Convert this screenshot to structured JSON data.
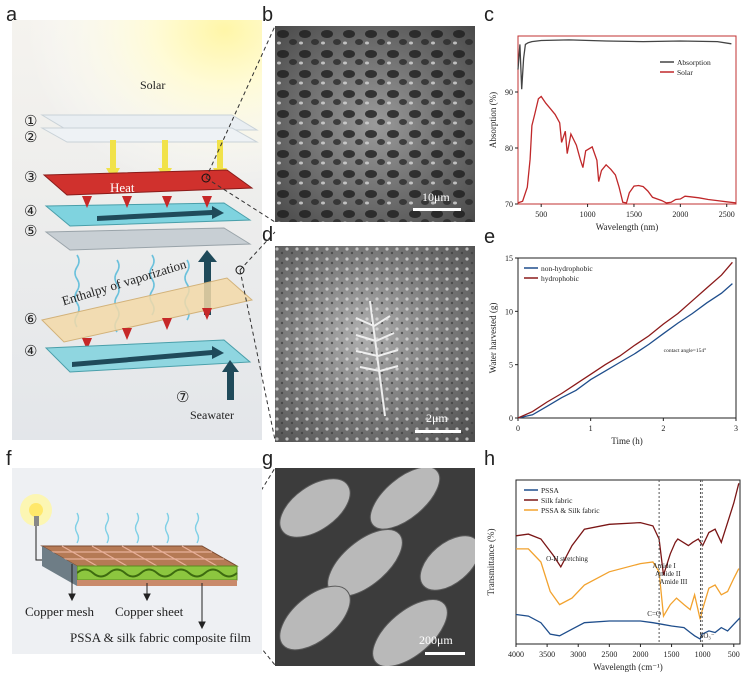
{
  "panels": {
    "a": {
      "letter": "a",
      "solar": "Solar",
      "heat": "Heat",
      "enthalpy": "Enthalpy of vaporization",
      "seawater": "Seawater",
      "markers": [
        "①",
        "②",
        "③",
        "④",
        "⑤",
        "⑥",
        "④",
        "⑦"
      ]
    },
    "b": {
      "letter": "b",
      "scale": "10μm"
    },
    "c": {
      "letter": "c"
    },
    "d": {
      "letter": "d",
      "scale": "2μm"
    },
    "e": {
      "letter": "e"
    },
    "f": {
      "letter": "f",
      "copper_mesh": "Copper mesh",
      "copper_sheet": "Copper sheet",
      "composite": "PSSA & silk fabric composite film"
    },
    "g": {
      "letter": "g",
      "scale": "200μm"
    },
    "h": {
      "letter": "h"
    }
  },
  "chart_data": [
    {
      "id": "c",
      "type": "line",
      "xlabel": "Wavelength (nm)",
      "ylabel": "Absorption (%)",
      "xlim": [
        250,
        2600
      ],
      "ylim": [
        70,
        100
      ],
      "xticks": [
        "500",
        "1000",
        "1500",
        "2000",
        "2500"
      ],
      "yticks": [
        "70",
        "80",
        "90"
      ],
      "legend_position": "top-right",
      "series": [
        {
          "name": "Absorption",
          "color": "#444444",
          "x": [
            250,
            270,
            290,
            310,
            330,
            360,
            400,
            500,
            800,
            1200,
            1600,
            2000,
            2400,
            2550
          ],
          "y": [
            94,
            98.5,
            90.5,
            96,
            98.5,
            98.8,
            99,
            99.2,
            99.3,
            99.1,
            99.0,
            99.1,
            99.0,
            98.6
          ]
        },
        {
          "name": "Solar",
          "color": "#c0282a",
          "x": [
            250,
            300,
            350,
            380,
            400,
            430,
            470,
            500,
            550,
            600,
            650,
            700,
            720,
            760,
            780,
            820,
            880,
            920,
            950,
            980,
            1050,
            1100,
            1120,
            1150,
            1200,
            1250,
            1300,
            1340,
            1380,
            1420,
            1450,
            1500,
            1550,
            1600,
            1650,
            1700,
            1800,
            1850,
            1900,
            1950,
            2000,
            2050,
            2100,
            2200,
            2300,
            2400,
            2500,
            2600
          ],
          "y": [
            70.2,
            70.5,
            73,
            78,
            84,
            86,
            88.8,
            89.2,
            88,
            87,
            86,
            84.5,
            81,
            83,
            79,
            82.5,
            80.5,
            78,
            76.5,
            79.5,
            80.2,
            77.8,
            74,
            76,
            77,
            76.2,
            75.2,
            73,
            70.3,
            70.2,
            72,
            73.2,
            73.3,
            73.1,
            72.3,
            71.2,
            70.6,
            70.2,
            70.3,
            70.8,
            70.9,
            71.4,
            71.3,
            71.1,
            70.8,
            70.6,
            70.4,
            70.2
          ]
        }
      ]
    },
    {
      "id": "e",
      "type": "line",
      "xlabel": "Time (h)",
      "ylabel": "Water harvested (g)",
      "xlim": [
        0,
        3
      ],
      "ylim": [
        0,
        15
      ],
      "xticks": [
        "0",
        "1",
        "2",
        "3"
      ],
      "yticks": [
        "0",
        "5",
        "10",
        "15"
      ],
      "legend_position": "top-left",
      "annotation": "contact angle=154°",
      "series": [
        {
          "name": "non-hydrophobic",
          "color": "#1f4e8c",
          "x": [
            0,
            0.2,
            0.4,
            0.6,
            0.8,
            1.0,
            1.2,
            1.4,
            1.6,
            1.8,
            2.0,
            2.2,
            2.4,
            2.6,
            2.8,
            2.95
          ],
          "y": [
            0,
            0.3,
            1.1,
            1.9,
            2.6,
            3.6,
            4.4,
            5.2,
            6.0,
            6.9,
            7.9,
            8.9,
            9.8,
            10.8,
            11.7,
            12.6
          ]
        },
        {
          "name": "hydrophobic",
          "color": "#8b1a1a",
          "x": [
            0,
            0.2,
            0.4,
            0.6,
            0.8,
            1.0,
            1.2,
            1.4,
            1.6,
            1.8,
            2.0,
            2.2,
            2.4,
            2.6,
            2.8,
            2.95
          ],
          "y": [
            0,
            0.6,
            1.5,
            2.3,
            3.2,
            4.1,
            5.0,
            5.8,
            6.8,
            7.7,
            8.8,
            9.8,
            11.0,
            12.2,
            13.4,
            14.6
          ]
        }
      ]
    },
    {
      "id": "h",
      "type": "line",
      "xlabel": "Wavelength (cm⁻¹)",
      "ylabel": "Transmittance (%)",
      "xlim": [
        4000,
        400
      ],
      "xticks": [
        "4000",
        "3500",
        "3000",
        "2500",
        "2000",
        "1500",
        "1000",
        "500"
      ],
      "legend_position": "top-left",
      "annotations": [
        "O-H stretching",
        "Amide I",
        "Amide II",
        "Amide III",
        "C=O",
        "SO₃⁻"
      ],
      "series": [
        {
          "name": "PSSA",
          "color": "#1f4e8c",
          "x": [
            4000,
            3800,
            3600,
            3450,
            3300,
            3100,
            2900,
            2500,
            2000,
            1800,
            1650,
            1500,
            1300,
            1200,
            1130,
            1040,
            1010,
            900,
            800,
            700,
            600,
            500,
            400
          ],
          "y": [
            0.18,
            0.17,
            0.13,
            0.06,
            0.05,
            0.09,
            0.13,
            0.14,
            0.14,
            0.13,
            0.12,
            0.11,
            0.1,
            0.07,
            0.05,
            0.03,
            0.06,
            0.08,
            0.07,
            0.1,
            0.08,
            0.12,
            0.16
          ]
        },
        {
          "name": "Silk fabric",
          "color": "#7a1515",
          "x": [
            4000,
            3800,
            3600,
            3400,
            3280,
            3100,
            2900,
            2500,
            2000,
            1800,
            1700,
            1630,
            1520,
            1440,
            1400,
            1230,
            1160,
            1070,
            1000,
            900,
            800,
            700,
            600,
            500,
            420
          ],
          "y": [
            0.66,
            0.67,
            0.64,
            0.54,
            0.47,
            0.6,
            0.7,
            0.73,
            0.74,
            0.72,
            0.64,
            0.42,
            0.55,
            0.62,
            0.64,
            0.6,
            0.62,
            0.64,
            0.6,
            0.68,
            0.7,
            0.62,
            0.74,
            0.86,
            0.98
          ]
        },
        {
          "name": "PSSA & Silk fabric",
          "color": "#f2a22e",
          "x": [
            4000,
            3800,
            3600,
            3450,
            3300,
            3100,
            2900,
            2500,
            2000,
            1800,
            1700,
            1630,
            1520,
            1420,
            1300,
            1200,
            1130,
            1040,
            1010,
            900,
            800,
            700,
            600,
            500,
            420
          ],
          "y": [
            0.58,
            0.58,
            0.5,
            0.32,
            0.24,
            0.28,
            0.36,
            0.44,
            0.49,
            0.5,
            0.44,
            0.17,
            0.24,
            0.28,
            0.24,
            0.21,
            0.3,
            0.15,
            0.2,
            0.34,
            0.36,
            0.3,
            0.32,
            0.4,
            0.46
          ]
        }
      ]
    }
  ]
}
